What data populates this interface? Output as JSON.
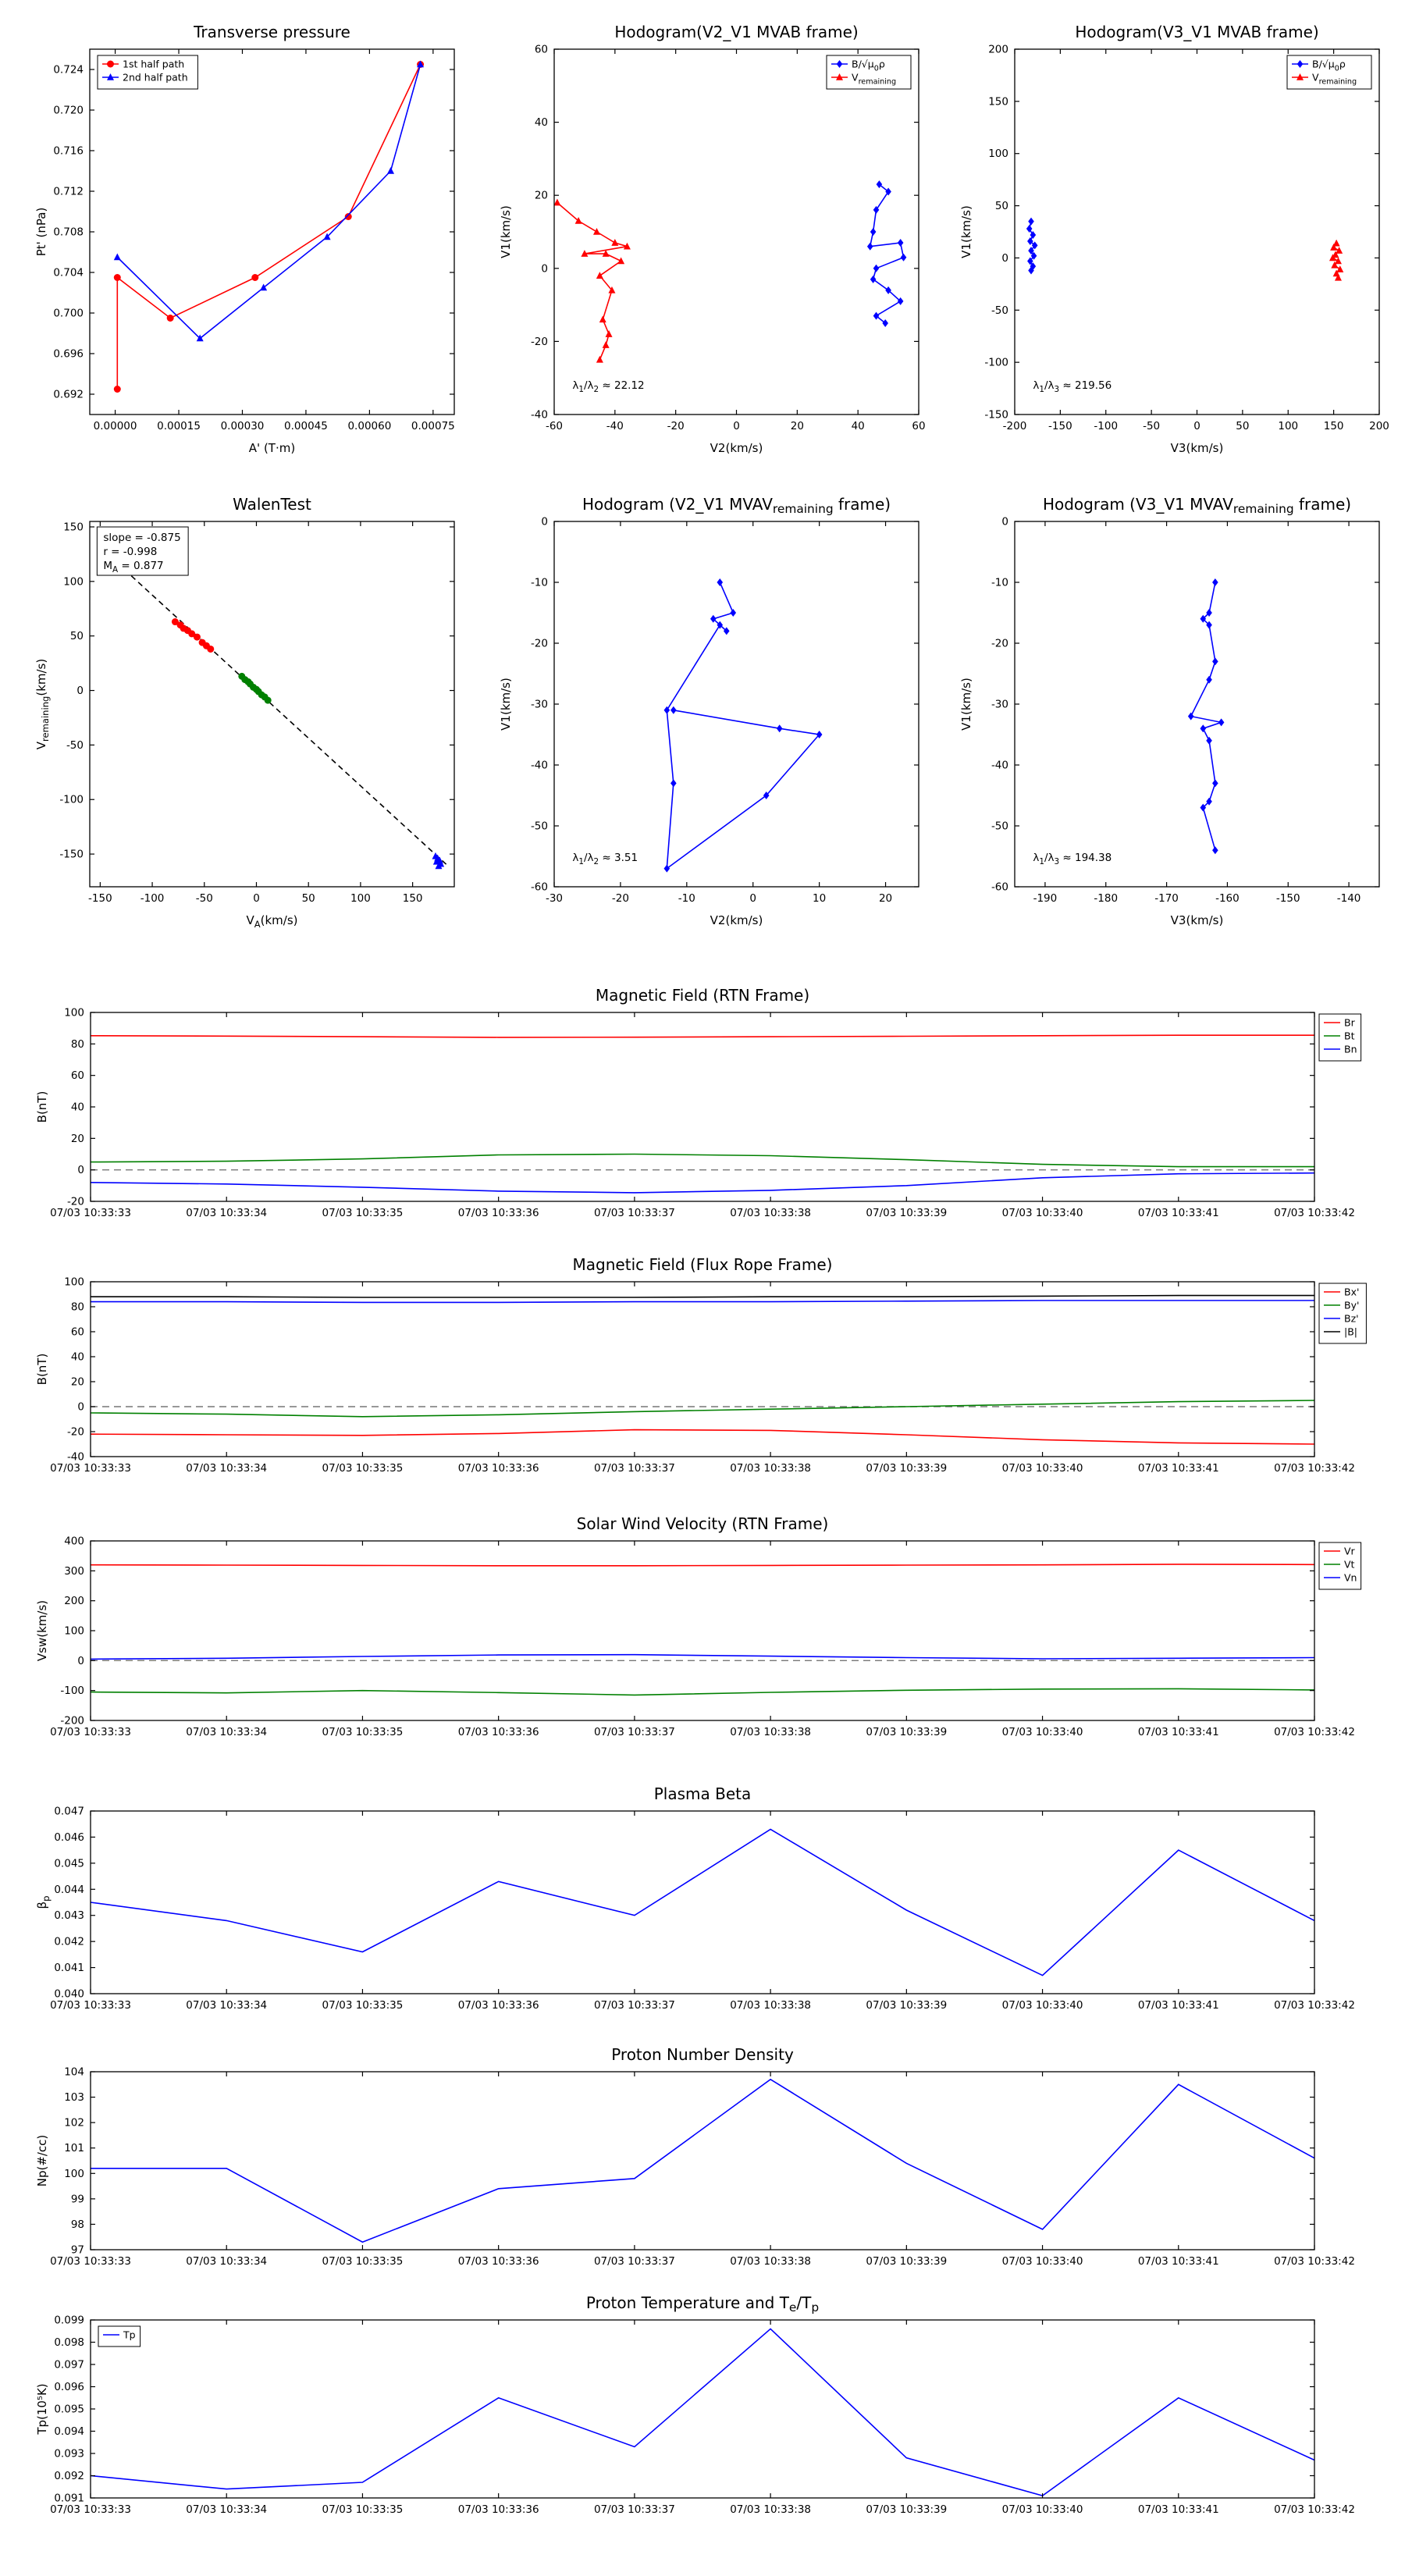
{
  "time_axis": [
    "07/03 10:33:33",
    "07/03 10:33:34",
    "07/03 10:33:35",
    "07/03 10:33:36",
    "07/03 10:33:37",
    "07/03 10:33:38",
    "07/03 10:33:39",
    "07/03 10:33:40",
    "07/03 10:33:41",
    "07/03 10:33:42"
  ],
  "colors": {
    "red": "#ff0000",
    "blue": "#0000ff",
    "green": "#008000",
    "black": "#000000",
    "dashed_zero": "#777777"
  },
  "chart_data": [
    {
      "type": "line",
      "title": "Transverse pressure",
      "xlabel": "A' (T·m)",
      "ylabel": "Pt' (nPa)",
      "xlim": [
        -6e-05,
        0.0008
      ],
      "ylim": [
        0.69,
        0.726
      ],
      "xticks": [
        0.0,
        0.00015,
        0.0003,
        0.00045,
        0.0006,
        0.00075
      ],
      "xtick_labels": [
        "0.00000",
        "0.00015",
        "0.00030",
        "0.00045",
        "0.00060",
        "0.00075"
      ],
      "yticks": [
        0.692,
        0.696,
        0.7,
        0.704,
        0.708,
        0.712,
        0.716,
        0.72,
        0.724
      ],
      "ytick_labels": [
        "0.692",
        "0.696",
        "0.700",
        "0.704",
        "0.708",
        "0.712",
        "0.716",
        "0.720",
        "0.724"
      ],
      "legend": {
        "loc": "upper left"
      },
      "series": [
        {
          "name": "1st half path",
          "color": "#ff0000",
          "marker": "circle",
          "x": [
            5e-06,
            5e-06,
            0.00013,
            0.00033,
            0.00055,
            0.00072
          ],
          "y": [
            0.6925,
            0.7035,
            0.6995,
            0.7035,
            0.7095,
            0.7245
          ]
        },
        {
          "name": "2nd half path",
          "color": "#0000ff",
          "marker": "triangle",
          "x": [
            5e-06,
            0.0002,
            0.00035,
            0.0005,
            0.00065,
            0.00072
          ],
          "y": [
            0.7055,
            0.6975,
            0.7025,
            0.7075,
            0.714,
            0.7245
          ]
        }
      ]
    },
    {
      "type": "line",
      "title": "Hodogram(V2_V1 MVAB frame)",
      "xlabel": "V2(km/s)",
      "ylabel": "V1(km/s)",
      "xlim": [
        -60,
        60
      ],
      "ylim": [
        -40,
        60
      ],
      "xticks": [
        -60,
        -40,
        -20,
        0,
        20,
        40,
        60
      ],
      "yticks": [
        -40,
        -20,
        0,
        20,
        40,
        60
      ],
      "legend": {
        "loc": "upper right"
      },
      "annotations": [
        {
          "text": "λ~1~/λ~2~ ≈ 22.12",
          "fx": 0.05,
          "fy": 0.07
        }
      ],
      "series": [
        {
          "name": "B/√μ~0~ρ",
          "color": "#0000ff",
          "marker": "diamond",
          "x": [
            47,
            50,
            46,
            45,
            44,
            54,
            55,
            46,
            45,
            50,
            54,
            46,
            49
          ],
          "y": [
            23,
            21,
            16,
            10,
            6,
            7,
            3,
            0,
            -3,
            -6,
            -9,
            -13,
            -15
          ]
        },
        {
          "name": "V~remaining~",
          "color": "#ff0000",
          "marker": "triangle",
          "x": [
            -59,
            -52,
            -46,
            -40,
            -36,
            -50,
            -43,
            -38,
            -45,
            -41,
            -44,
            -42,
            -43,
            -45
          ],
          "y": [
            18,
            13,
            10,
            7,
            6,
            4,
            4,
            2,
            -2,
            -6,
            -14,
            -18,
            -21,
            -25
          ]
        }
      ]
    },
    {
      "type": "line",
      "title": "Hodogram(V3_V1 MVAB frame)",
      "xlabel": "V3(km/s)",
      "ylabel": "V1(km/s)",
      "xlim": [
        -200,
        200
      ],
      "ylim": [
        -150,
        200
      ],
      "xticks": [
        -200,
        -150,
        -100,
        -50,
        0,
        50,
        100,
        150,
        200
      ],
      "yticks": [
        -150,
        -100,
        -50,
        0,
        50,
        100,
        150,
        200
      ],
      "legend": {
        "loc": "upper right"
      },
      "annotations": [
        {
          "text": "λ~1~/λ~3~ ≈ 219.56",
          "fx": 0.05,
          "fy": 0.07
        }
      ],
      "series": [
        {
          "name": "B/√μ~0~ρ",
          "color": "#0000ff",
          "marker": "diamond",
          "x": [
            -182,
            -184,
            -180,
            -183,
            -178,
            -182,
            -179,
            -183,
            -180,
            -182
          ],
          "y": [
            35,
            28,
            22,
            16,
            12,
            7,
            2,
            -3,
            -8,
            -12
          ]
        },
        {
          "name": "V~remaining~",
          "color": "#ff0000",
          "marker": "triangle",
          "x": [
            153,
            150,
            156,
            152,
            149,
            155,
            151,
            157,
            153,
            155
          ],
          "y": [
            14,
            10,
            7,
            3,
            0,
            -3,
            -7,
            -11,
            -15,
            -19
          ]
        }
      ]
    },
    {
      "type": "scatter",
      "title": "WalenTest",
      "xlabel": "V~A~(km/s)",
      "ylabel": "V~remaining~(km/s)",
      "xlim": [
        -160,
        190
      ],
      "ylim": [
        -180,
        155
      ],
      "xticks": [
        -150,
        -100,
        -50,
        0,
        50,
        100,
        150
      ],
      "yticks": [
        -150,
        -100,
        -50,
        0,
        50,
        100,
        150
      ],
      "legend": null,
      "annotations": [
        {
          "lines": [
            "slope = -0.875",
            "r = -0.998",
            "M~A~ = 0.877"
          ],
          "fx": 0.02,
          "fy": 0.985
        }
      ],
      "series": [
        {
          "name": "fit",
          "in_legend": false,
          "color": "#000000",
          "dash": "7,5",
          "x": [
            -140,
            183
          ],
          "y": [
            122.5,
            -160.1
          ]
        },
        {
          "name": "first-half",
          "in_legend": false,
          "color": "#ff0000",
          "marker": "circle",
          "line": false,
          "x": [
            -78,
            -73,
            -70,
            -66,
            -62,
            -57,
            -52,
            -48,
            -44
          ],
          "y": [
            63,
            60,
            57,
            55,
            52,
            49,
            44,
            41,
            38
          ]
        },
        {
          "name": "mid",
          "in_legend": false,
          "color": "#008000",
          "marker": "circle",
          "line": false,
          "x": [
            -14,
            -11,
            -8,
            -6,
            -3,
            0,
            2,
            5,
            8,
            11
          ],
          "y": [
            13,
            10,
            8,
            6,
            3,
            1,
            -1,
            -4,
            -6,
            -9
          ]
        },
        {
          "name": "second-half",
          "in_legend": false,
          "color": "#0000ff",
          "marker": "triangle",
          "line": false,
          "x": [
            172,
            174,
            176,
            173,
            177,
            175
          ],
          "y": [
            -152,
            -154,
            -156,
            -157,
            -159,
            -161
          ]
        }
      ]
    },
    {
      "type": "line",
      "title": "Hodogram (V2_V1 MVAV~remaining~ frame)",
      "xlabel": "V2(km/s)",
      "ylabel": "V1(km/s)",
      "xlim": [
        -30,
        25
      ],
      "ylim": [
        -60,
        0
      ],
      "xticks": [
        -30,
        -20,
        -10,
        0,
        10,
        20
      ],
      "yticks": [
        0,
        -10,
        -20,
        -30,
        -40,
        -50,
        -60
      ],
      "legend": null,
      "annotations": [
        {
          "text": "λ~1~/λ~2~ ≈ 3.51",
          "fx": 0.05,
          "fy": 0.07
        }
      ],
      "series": [
        {
          "name": "path",
          "in_legend": false,
          "color": "#0000ff",
          "marker": "diamond",
          "x": [
            -5,
            -3,
            -6,
            -4,
            -5,
            -13,
            -12,
            -13,
            2,
            10,
            4,
            -12
          ],
          "y": [
            -10,
            -15,
            -16,
            -18,
            -17,
            -31,
            -43,
            -57,
            -45,
            -35,
            -34,
            -31
          ]
        }
      ]
    },
    {
      "type": "line",
      "title": "Hodogram (V3_V1 MVAV~remaining~ frame)",
      "xlabel": "V3(km/s)",
      "ylabel": "V1(km/s)",
      "xlim": [
        -195,
        -135
      ],
      "ylim": [
        -60,
        0
      ],
      "xticks": [
        -190,
        -180,
        -170,
        -160,
        -150,
        -140
      ],
      "yticks": [
        0,
        -10,
        -20,
        -30,
        -40,
        -50,
        -60
      ],
      "legend": null,
      "annotations": [
        {
          "text": "λ~1~/λ~3~ ≈ 194.38",
          "fx": 0.05,
          "fy": 0.07
        }
      ],
      "series": [
        {
          "name": "path",
          "in_legend": false,
          "color": "#0000ff",
          "marker": "diamond",
          "x": [
            -162,
            -163,
            -164,
            -163,
            -162,
            -163,
            -166,
            -161,
            -164,
            -163,
            -162,
            -163,
            -164,
            -162
          ],
          "y": [
            -10,
            -15,
            -16,
            -17,
            -23,
            -26,
            -32,
            -33,
            -34,
            -36,
            -43,
            -46,
            -47,
            -54
          ]
        }
      ]
    },
    {
      "type": "line",
      "title": "Magnetic Field (RTN Frame)",
      "ylabel": "B(nT)",
      "x_is_time": true,
      "ylim": [
        -20,
        100
      ],
      "yticks": [
        -20,
        0,
        20,
        40,
        60,
        80,
        100
      ],
      "zero_line": true,
      "legend": {
        "loc": "right-out"
      },
      "series": [
        {
          "name": "Br",
          "color": "#ff0000",
          "y": [
            85.2,
            85.0,
            84.6,
            84.2,
            84.3,
            84.6,
            84.9,
            85.2,
            85.5,
            85.5
          ]
        },
        {
          "name": "Bt",
          "color": "#008000",
          "y": [
            5.0,
            5.5,
            7.0,
            9.5,
            10.0,
            9.0,
            6.5,
            3.5,
            2.0,
            2.0
          ]
        },
        {
          "name": "Bn",
          "color": "#0000ff",
          "y": [
            -8.0,
            -9.0,
            -11.0,
            -13.5,
            -14.5,
            -13.0,
            -10.0,
            -5.0,
            -2.5,
            -2.0
          ]
        }
      ]
    },
    {
      "type": "line",
      "title": "Magnetic Field (Flux Rope Frame)",
      "ylabel": "B(nT)",
      "x_is_time": true,
      "ylim": [
        -40,
        100
      ],
      "yticks": [
        -40,
        -20,
        0,
        20,
        40,
        60,
        80,
        100
      ],
      "zero_line": true,
      "legend": {
        "loc": "right-out"
      },
      "series": [
        {
          "name": "Bx'",
          "color": "#ff0000",
          "y": [
            -22,
            -22.5,
            -23,
            -21.5,
            -18.5,
            -19,
            -22.5,
            -26.5,
            -29,
            -30
          ]
        },
        {
          "name": "By'",
          "color": "#008000",
          "y": [
            -5,
            -6,
            -8,
            -6.5,
            -4,
            -2,
            0,
            2,
            4,
            5
          ]
        },
        {
          "name": "Bz'",
          "color": "#0000ff",
          "y": [
            84,
            84,
            83.5,
            83.5,
            84,
            84,
            84.5,
            85,
            85,
            85
          ]
        },
        {
          "name": "|B|",
          "color": "#000000",
          "y": [
            88,
            88,
            87.5,
            87.5,
            87.5,
            88,
            88,
            88.5,
            89,
            89
          ]
        }
      ]
    },
    {
      "type": "line",
      "title": "Solar Wind Velocity (RTN Frame)",
      "ylabel": "Vsw(km/s)",
      "x_is_time": true,
      "ylim": [
        -200,
        400
      ],
      "yticks": [
        -200,
        -100,
        0,
        100,
        200,
        300,
        400
      ],
      "zero_line": true,
      "legend": {
        "loc": "right-out"
      },
      "series": [
        {
          "name": "Vr",
          "color": "#ff0000",
          "y": [
            320,
            319,
            318,
            317,
            317,
            318,
            319,
            320,
            322,
            321
          ]
        },
        {
          "name": "Vt",
          "color": "#008000",
          "y": [
            -105,
            -108,
            -100,
            -107,
            -115,
            -106,
            -99,
            -95,
            -94,
            -98
          ]
        },
        {
          "name": "Vn",
          "color": "#0000ff",
          "y": [
            5,
            8,
            14,
            19,
            20,
            15,
            10,
            6,
            8,
            10
          ]
        }
      ]
    },
    {
      "type": "line",
      "title": "Plasma Beta",
      "ylabel": "β~p~",
      "x_is_time": true,
      "ylim": [
        0.04,
        0.047
      ],
      "yticks": [
        0.04,
        0.041,
        0.042,
        0.043,
        0.044,
        0.045,
        0.046,
        0.047
      ],
      "ytick_labels": [
        "0.040",
        "0.041",
        "0.042",
        "0.043",
        "0.044",
        "0.045",
        "0.046",
        "0.047"
      ],
      "legend": null,
      "series": [
        {
          "name": "beta",
          "in_legend": false,
          "color": "#0000ff",
          "y": [
            0.0435,
            0.0428,
            0.0416,
            0.0443,
            0.043,
            0.0463,
            0.0432,
            0.0407,
            0.0455,
            0.0428
          ]
        }
      ]
    },
    {
      "type": "line",
      "title": "Proton Number Density",
      "ylabel": "Np(#/cc)",
      "x_is_time": true,
      "ylim": [
        97,
        104
      ],
      "yticks": [
        97,
        98,
        99,
        100,
        101,
        102,
        103,
        104
      ],
      "legend": null,
      "series": [
        {
          "name": "Np",
          "in_legend": false,
          "color": "#0000ff",
          "y": [
            100.2,
            100.2,
            97.3,
            99.4,
            99.8,
            103.7,
            100.4,
            97.8,
            103.5,
            100.6
          ]
        }
      ]
    },
    {
      "type": "line",
      "title": "Proton Temperature and T~e~/T~p~",
      "ylabel": "Tp(10⁵K)",
      "x_is_time": true,
      "ylim": [
        0.091,
        0.099
      ],
      "yticks": [
        0.091,
        0.092,
        0.093,
        0.094,
        0.095,
        0.096,
        0.097,
        0.098,
        0.099
      ],
      "ytick_labels": [
        "0.091",
        "0.092",
        "0.093",
        "0.094",
        "0.095",
        "0.096",
        "0.097",
        "0.098",
        "0.099"
      ],
      "legend": {
        "loc": "upper left"
      },
      "series": [
        {
          "name": "Tp",
          "color": "#0000ff",
          "y": [
            0.092,
            0.0914,
            0.0917,
            0.0955,
            0.0933,
            0.0986,
            0.0928,
            0.0911,
            0.0955,
            0.0927
          ]
        }
      ]
    }
  ]
}
